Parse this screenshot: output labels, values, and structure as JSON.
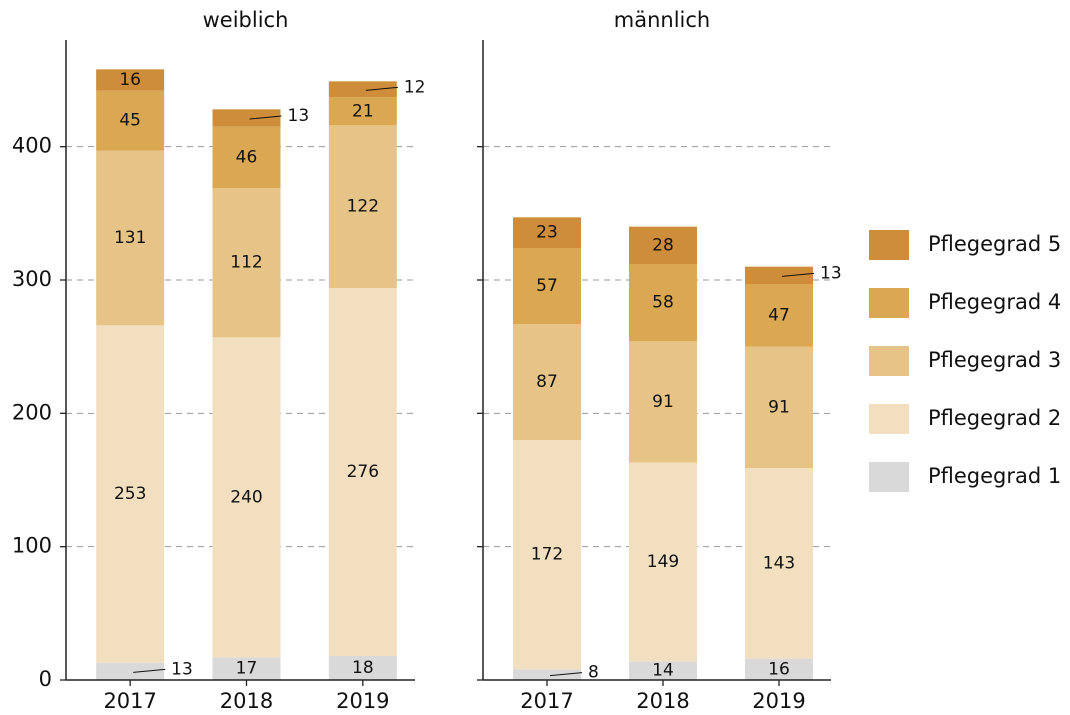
{
  "chart_data": [
    {
      "type": "stacked-bar",
      "title": "weiblich",
      "categories": [
        "2017",
        "2018",
        "2019"
      ],
      "series": [
        {
          "name": "Pflegegrad 1",
          "color": "#d9d9d9",
          "values": [
            13,
            17,
            18
          ]
        },
        {
          "name": "Pflegegrad 2",
          "color": "#f2dfbf",
          "values": [
            253,
            240,
            276
          ]
        },
        {
          "name": "Pflegegrad 3",
          "color": "#e6c488",
          "values": [
            131,
            112,
            122
          ]
        },
        {
          "name": "Pflegegrad 4",
          "color": "#daa853",
          "values": [
            45,
            46,
            21
          ]
        },
        {
          "name": "Pflegegrad 5",
          "color": "#cd8d3b",
          "values": [
            16,
            13,
            12
          ]
        }
      ],
      "ylim": [
        0,
        480
      ],
      "yticks": [
        0,
        100,
        200,
        300,
        400
      ],
      "grid": true
    },
    {
      "type": "stacked-bar",
      "title": "männlich",
      "categories": [
        "2017",
        "2018",
        "2019"
      ],
      "series": [
        {
          "name": "Pflegegrad 1",
          "color": "#d9d9d9",
          "values": [
            8,
            14,
            16
          ]
        },
        {
          "name": "Pflegegrad 2",
          "color": "#f2dfbf",
          "values": [
            172,
            149,
            143
          ]
        },
        {
          "name": "Pflegegrad 3",
          "color": "#e6c488",
          "values": [
            87,
            91,
            91
          ]
        },
        {
          "name": "Pflegegrad 4",
          "color": "#daa853",
          "values": [
            57,
            58,
            47
          ]
        },
        {
          "name": "Pflegegrad 5",
          "color": "#cd8d3b",
          "values": [
            23,
            28,
            13
          ]
        }
      ],
      "ylim": [
        0,
        480
      ],
      "yticks": [
        0,
        100,
        200,
        300,
        400
      ],
      "grid": true
    }
  ]
}
